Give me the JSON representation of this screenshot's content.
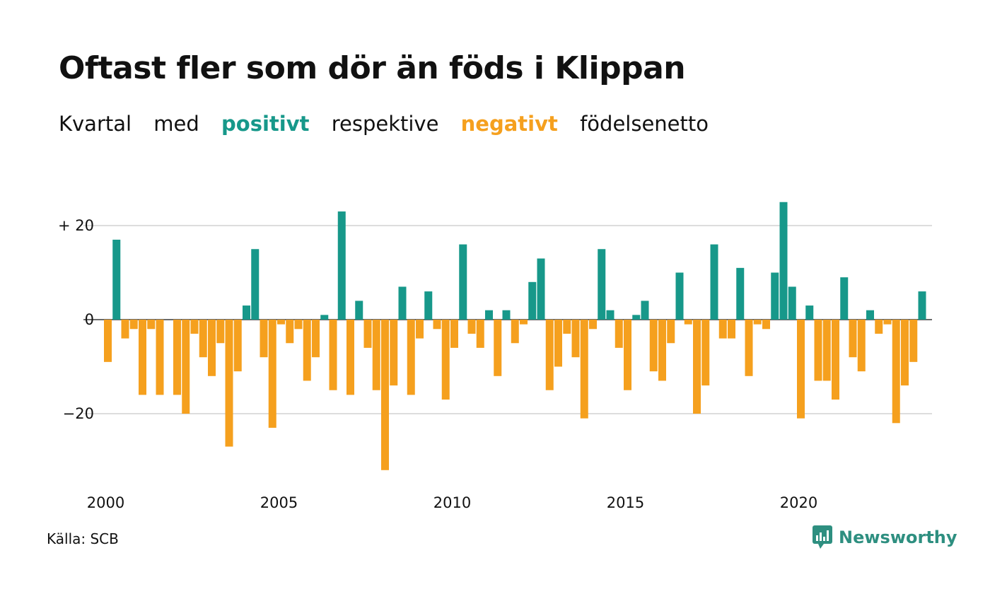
{
  "title": "Oftast fler som dör än föds i Klippan",
  "subtitle": {
    "part1": "Kvartal",
    "part2": "med",
    "positive_word": "positivt",
    "part3": "respektive",
    "negative_word": "negativt",
    "part4": "födelsenetto"
  },
  "source": "Källa: SCB",
  "brand": "Newsworthy",
  "colors": {
    "positive": "#17988a",
    "negative": "#f5a01e",
    "grid": "#dddddd",
    "text": "#111111",
    "brand": "#2e8f80"
  },
  "chart_data": {
    "type": "bar",
    "x_start": "2000 Q1",
    "frequency": "quarterly",
    "values": [
      -9,
      17,
      -4,
      -2,
      -16,
      -2,
      -16,
      0,
      -16,
      -20,
      -3,
      -8,
      -12,
      -5,
      -27,
      -11,
      3,
      15,
      -8,
      -23,
      -1,
      -5,
      -2,
      -13,
      -8,
      1,
      -15,
      23,
      -16,
      4,
      -6,
      -15,
      -32,
      -14,
      7,
      -16,
      -4,
      6,
      -2,
      -17,
      -6,
      16,
      -3,
      -6,
      2,
      -12,
      2,
      -5,
      -1,
      8,
      13,
      -15,
      -10,
      -3,
      -8,
      -21,
      -2,
      15,
      2,
      -6,
      -15,
      1,
      4,
      -11,
      -13,
      -5,
      10,
      -1,
      -20,
      -14,
      16,
      -4,
      -4,
      11,
      -12,
      -1,
      -2,
      10,
      25,
      7,
      -21,
      3,
      -13,
      -13,
      -17,
      9,
      -8,
      -11,
      2,
      -3,
      -1,
      -22,
      -14,
      -9,
      6
    ],
    "x_ticks": [
      {
        "year": 2000,
        "label": "2000"
      },
      {
        "year": 2005,
        "label": "2005"
      },
      {
        "year": 2010,
        "label": "2010"
      },
      {
        "year": 2015,
        "label": "2015"
      },
      {
        "year": 2020,
        "label": "2020"
      }
    ],
    "y_ticks": [
      {
        "value": 20,
        "label": "+ 20"
      },
      {
        "value": 0,
        "label": "0"
      },
      {
        "value": -20,
        "label": "−20"
      }
    ],
    "ylim": [
      -36,
      28
    ],
    "grid": true,
    "xlabel": "",
    "ylabel": ""
  }
}
